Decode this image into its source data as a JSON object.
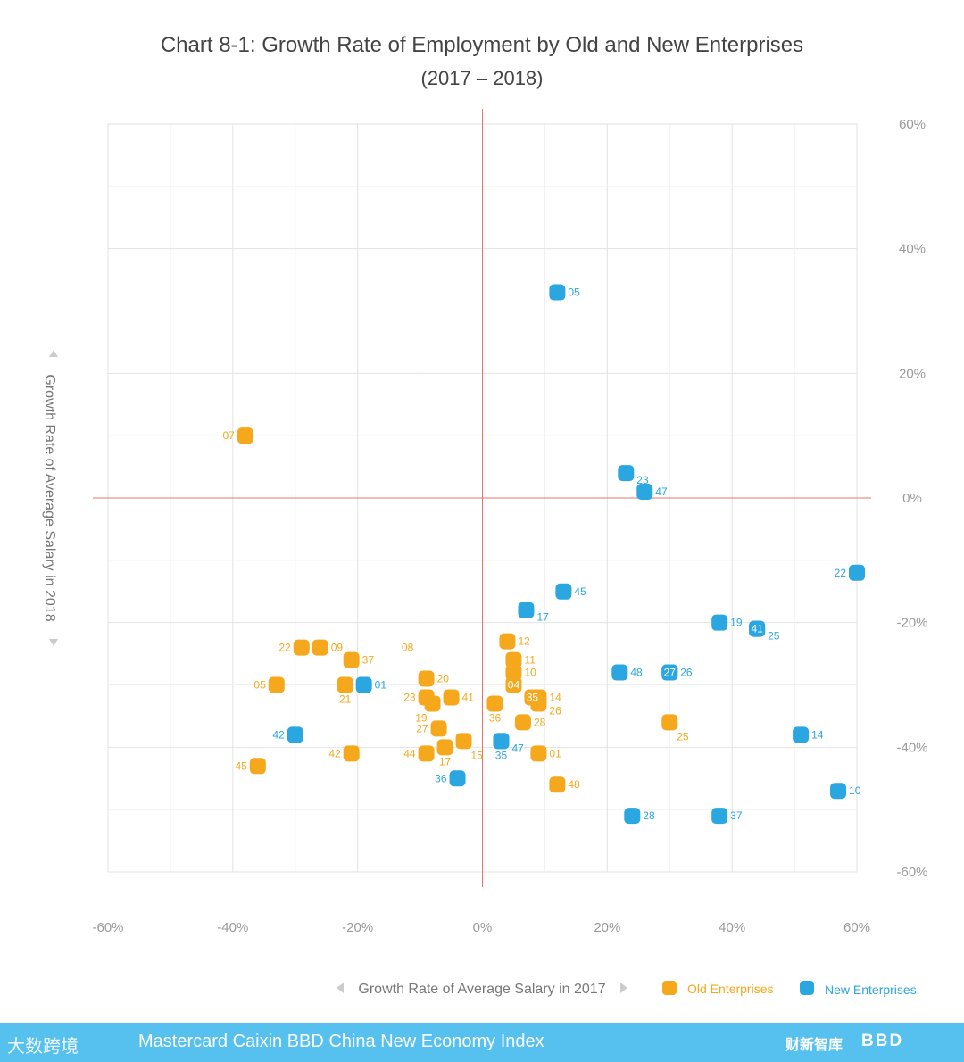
{
  "chart_data": {
    "type": "scatter",
    "title": "Chart 8-1: Growth Rate of Employment by Old and New Enterprises",
    "subtitle": "(2017 – 2018)",
    "xlabel": "Growth Rate of Average Salary in 2017",
    "ylabel": "Growth Rate of Average Salary in 2018",
    "xlim": [
      -60,
      60
    ],
    "ylim": [
      -60,
      60
    ],
    "x_ticks": [
      "-60%",
      "-40%",
      "-20%",
      "0%",
      "20%",
      "40%",
      "60%"
    ],
    "y_ticks": [
      "60%",
      "40%",
      "20%",
      "0%",
      "-20%",
      "-40%",
      "-60%"
    ],
    "tick_values": [
      -60,
      -40,
      -20,
      0,
      20,
      40,
      60
    ],
    "grid": true,
    "legend_position": "bottom-right",
    "series": [
      {
        "name": "Old Enterprises",
        "color": "#f5a81c",
        "points": [
          {
            "id": "07",
            "x": -38,
            "y": 10,
            "label_pos": "left"
          },
          {
            "id": "22",
            "x": -29,
            "y": -24,
            "label_pos": "left"
          },
          {
            "id": "09",
            "x": -26,
            "y": -24,
            "label_pos": "right"
          },
          {
            "id": "37",
            "x": -21,
            "y": -26,
            "label_pos": "right"
          },
          {
            "id": "05",
            "x": -33,
            "y": -30,
            "label_pos": "left"
          },
          {
            "id": "21",
            "x": -22,
            "y": -30,
            "label_pos": "below"
          },
          {
            "id": "42",
            "x": -21,
            "y": -41,
            "label_pos": "left"
          },
          {
            "id": "45",
            "x": -36,
            "y": -43,
            "label_pos": "left"
          },
          {
            "id": "20",
            "x": -9,
            "y": -29,
            "label_pos": "right"
          },
          {
            "id": "23",
            "x": -9,
            "y": -32,
            "label_pos": "left"
          },
          {
            "id": "19",
            "x": -8,
            "y": -33,
            "label_pos": "below-left"
          },
          {
            "id": "41",
            "x": -5,
            "y": -32,
            "label_pos": "right"
          },
          {
            "id": "27",
            "x": -7,
            "y": -37,
            "label_pos": "left"
          },
          {
            "id": "44",
            "x": -9,
            "y": -41,
            "label_pos": "left"
          },
          {
            "id": "17",
            "x": -6,
            "y": -40,
            "label_pos": "below"
          },
          {
            "id": "15",
            "x": -3,
            "y": -39,
            "label_pos": "below-right"
          },
          {
            "id": "36",
            "x": 2,
            "y": -33,
            "label_pos": "below"
          },
          {
            "id": "12",
            "x": 4,
            "y": -23,
            "label_pos": "right"
          },
          {
            "id": "11",
            "x": 5,
            "y": -26,
            "label_pos": "right"
          },
          {
            "id": "10",
            "x": 5,
            "y": -28,
            "label_pos": "right"
          },
          {
            "id": "04",
            "x": 5,
            "y": -30,
            "label_pos": "inside"
          },
          {
            "id": "14",
            "x": 9,
            "y": -32,
            "label_pos": "right"
          },
          {
            "id": "26",
            "x": 9,
            "y": -33,
            "label_pos": "right-low"
          },
          {
            "id": "35",
            "x": 8,
            "y": -32,
            "label_pos": "inside"
          },
          {
            "id": "28",
            "x": 6.5,
            "y": -36,
            "label_pos": "right"
          },
          {
            "id": "01",
            "x": 9,
            "y": -41,
            "label_pos": "right"
          },
          {
            "id": "48",
            "x": 12,
            "y": -46,
            "label_pos": "right"
          },
          {
            "id": "25",
            "x": 30,
            "y": -36,
            "label_pos": "below-right"
          }
        ],
        "annotations": [
          {
            "id": "08",
            "x": -12,
            "y": -24
          }
        ]
      },
      {
        "name": "New Enterprises",
        "color": "#2aa6e0",
        "points": [
          {
            "id": "05",
            "x": 12,
            "y": 33,
            "label_pos": "right"
          },
          {
            "id": "23",
            "x": 23,
            "y": 4,
            "label_pos": "right-low"
          },
          {
            "id": "47",
            "x": 26,
            "y": 1,
            "label_pos": "right"
          },
          {
            "id": "22",
            "x": 60,
            "y": -12,
            "label_pos": "left"
          },
          {
            "id": "45",
            "x": 13,
            "y": -15,
            "label_pos": "right"
          },
          {
            "id": "17",
            "x": 7,
            "y": -18,
            "label_pos": "right-low"
          },
          {
            "id": "19",
            "x": 38,
            "y": -20,
            "label_pos": "right"
          },
          {
            "id": "25",
            "x": 44,
            "y": -21,
            "label_pos": "right-low"
          },
          {
            "id": "41",
            "x": 44,
            "y": -21,
            "label_pos": "inside"
          },
          {
            "id": "48",
            "x": 22,
            "y": -28,
            "label_pos": "right"
          },
          {
            "id": "26",
            "x": 30,
            "y": -28,
            "label_pos": "right"
          },
          {
            "id": "27",
            "x": 30,
            "y": -28,
            "label_pos": "inside"
          },
          {
            "id": "01",
            "x": -19,
            "y": -30,
            "label_pos": "right"
          },
          {
            "id": "42",
            "x": -30,
            "y": -38,
            "label_pos": "left"
          },
          {
            "id": "47",
            "x": 3,
            "y": -39,
            "label_pos": "right-low"
          },
          {
            "id": "35",
            "x": 3,
            "y": -39,
            "label_pos": "below"
          },
          {
            "id": "36",
            "x": -4,
            "y": -45,
            "label_pos": "left"
          },
          {
            "id": "14",
            "x": 51,
            "y": -38,
            "label_pos": "right"
          },
          {
            "id": "10",
            "x": 57,
            "y": -47,
            "label_pos": "right"
          },
          {
            "id": "28",
            "x": 24,
            "y": -51,
            "label_pos": "right"
          },
          {
            "id": "37",
            "x": 38,
            "y": -51,
            "label_pos": "right"
          }
        ]
      }
    ]
  },
  "footer": {
    "brand": "Mastercard Caixin BBD China New Economy Index",
    "left_logo": "大数跨境",
    "right_logo_cn": "财新智库",
    "right_logo_bbd": "BBD"
  },
  "colors": {
    "axis_zero": "#e8736b",
    "footer_bg": "#56c0ee"
  }
}
